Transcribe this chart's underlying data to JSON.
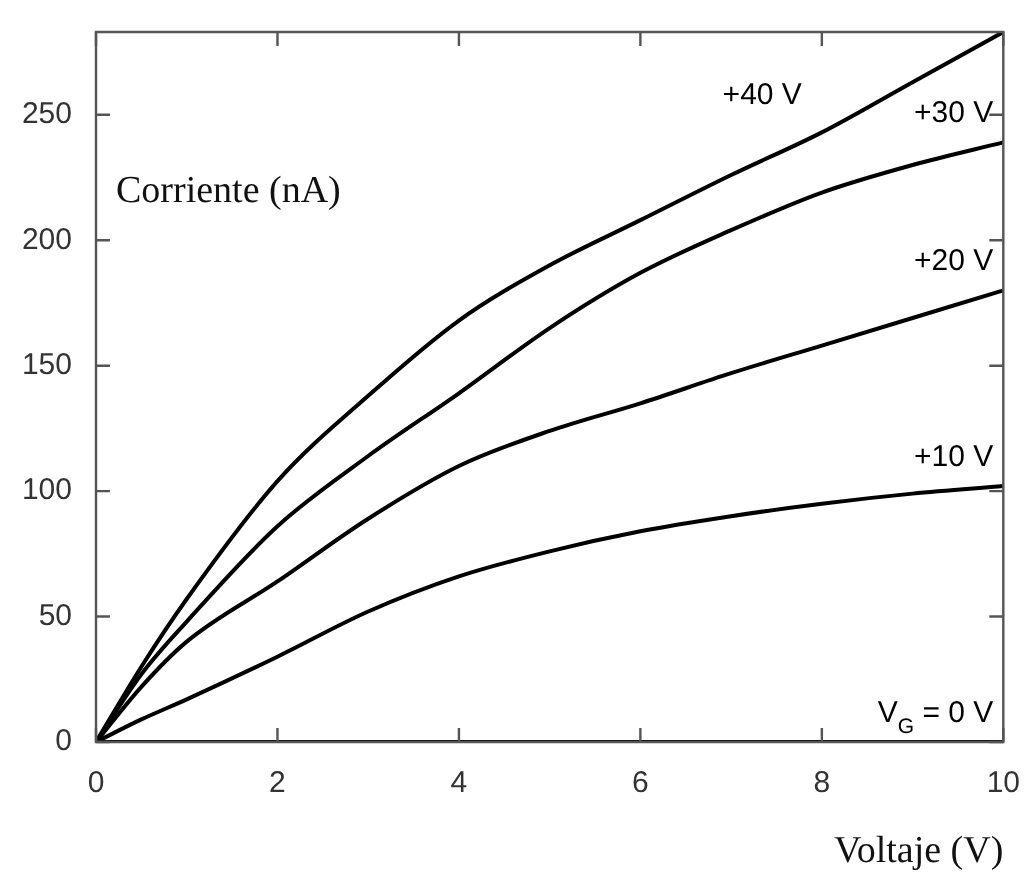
{
  "chart_data": {
    "type": "line",
    "xlabel": "Voltaje (V)",
    "ylabel": "Corriente (nA)",
    "xlim": [
      0,
      10
    ],
    "xticks": [
      0,
      2,
      4,
      6,
      8,
      10
    ],
    "ylim": [
      0,
      283
    ],
    "yticks": [
      0,
      50,
      100,
      150,
      200,
      250
    ],
    "grid": false,
    "legend": false,
    "marker": "none",
    "line_style": "solid",
    "x": [
      0,
      0.5,
      1,
      2,
      3,
      4,
      5,
      6,
      7,
      8,
      9,
      10
    ],
    "series": [
      {
        "name": "+40 V",
        "color": "#000000",
        "values": [
          0,
          30,
          57,
          104,
          138,
          168,
          190,
          208,
          226,
          243,
          263,
          283
        ]
      },
      {
        "name": "+30 V",
        "color": "#000000",
        "values": [
          0,
          27,
          48,
          86,
          114,
          139,
          165,
          187,
          204,
          219,
          230,
          239
        ]
      },
      {
        "name": "+20 V",
        "color": "#000000",
        "values": [
          0,
          22,
          40,
          64,
          89,
          110,
          124,
          135,
          147,
          158,
          169,
          180
        ]
      },
      {
        "name": "+10 V",
        "color": "#000000",
        "values": [
          0,
          9,
          17,
          34,
          52,
          66,
          76,
          84,
          90,
          95,
          99,
          102
        ]
      },
      {
        "name": "V$_{G}$ = 0 V",
        "color": "#000000",
        "values": [
          0,
          0,
          0,
          0,
          0,
          0,
          0,
          0,
          0,
          0,
          0,
          0
        ]
      }
    ]
  }
}
